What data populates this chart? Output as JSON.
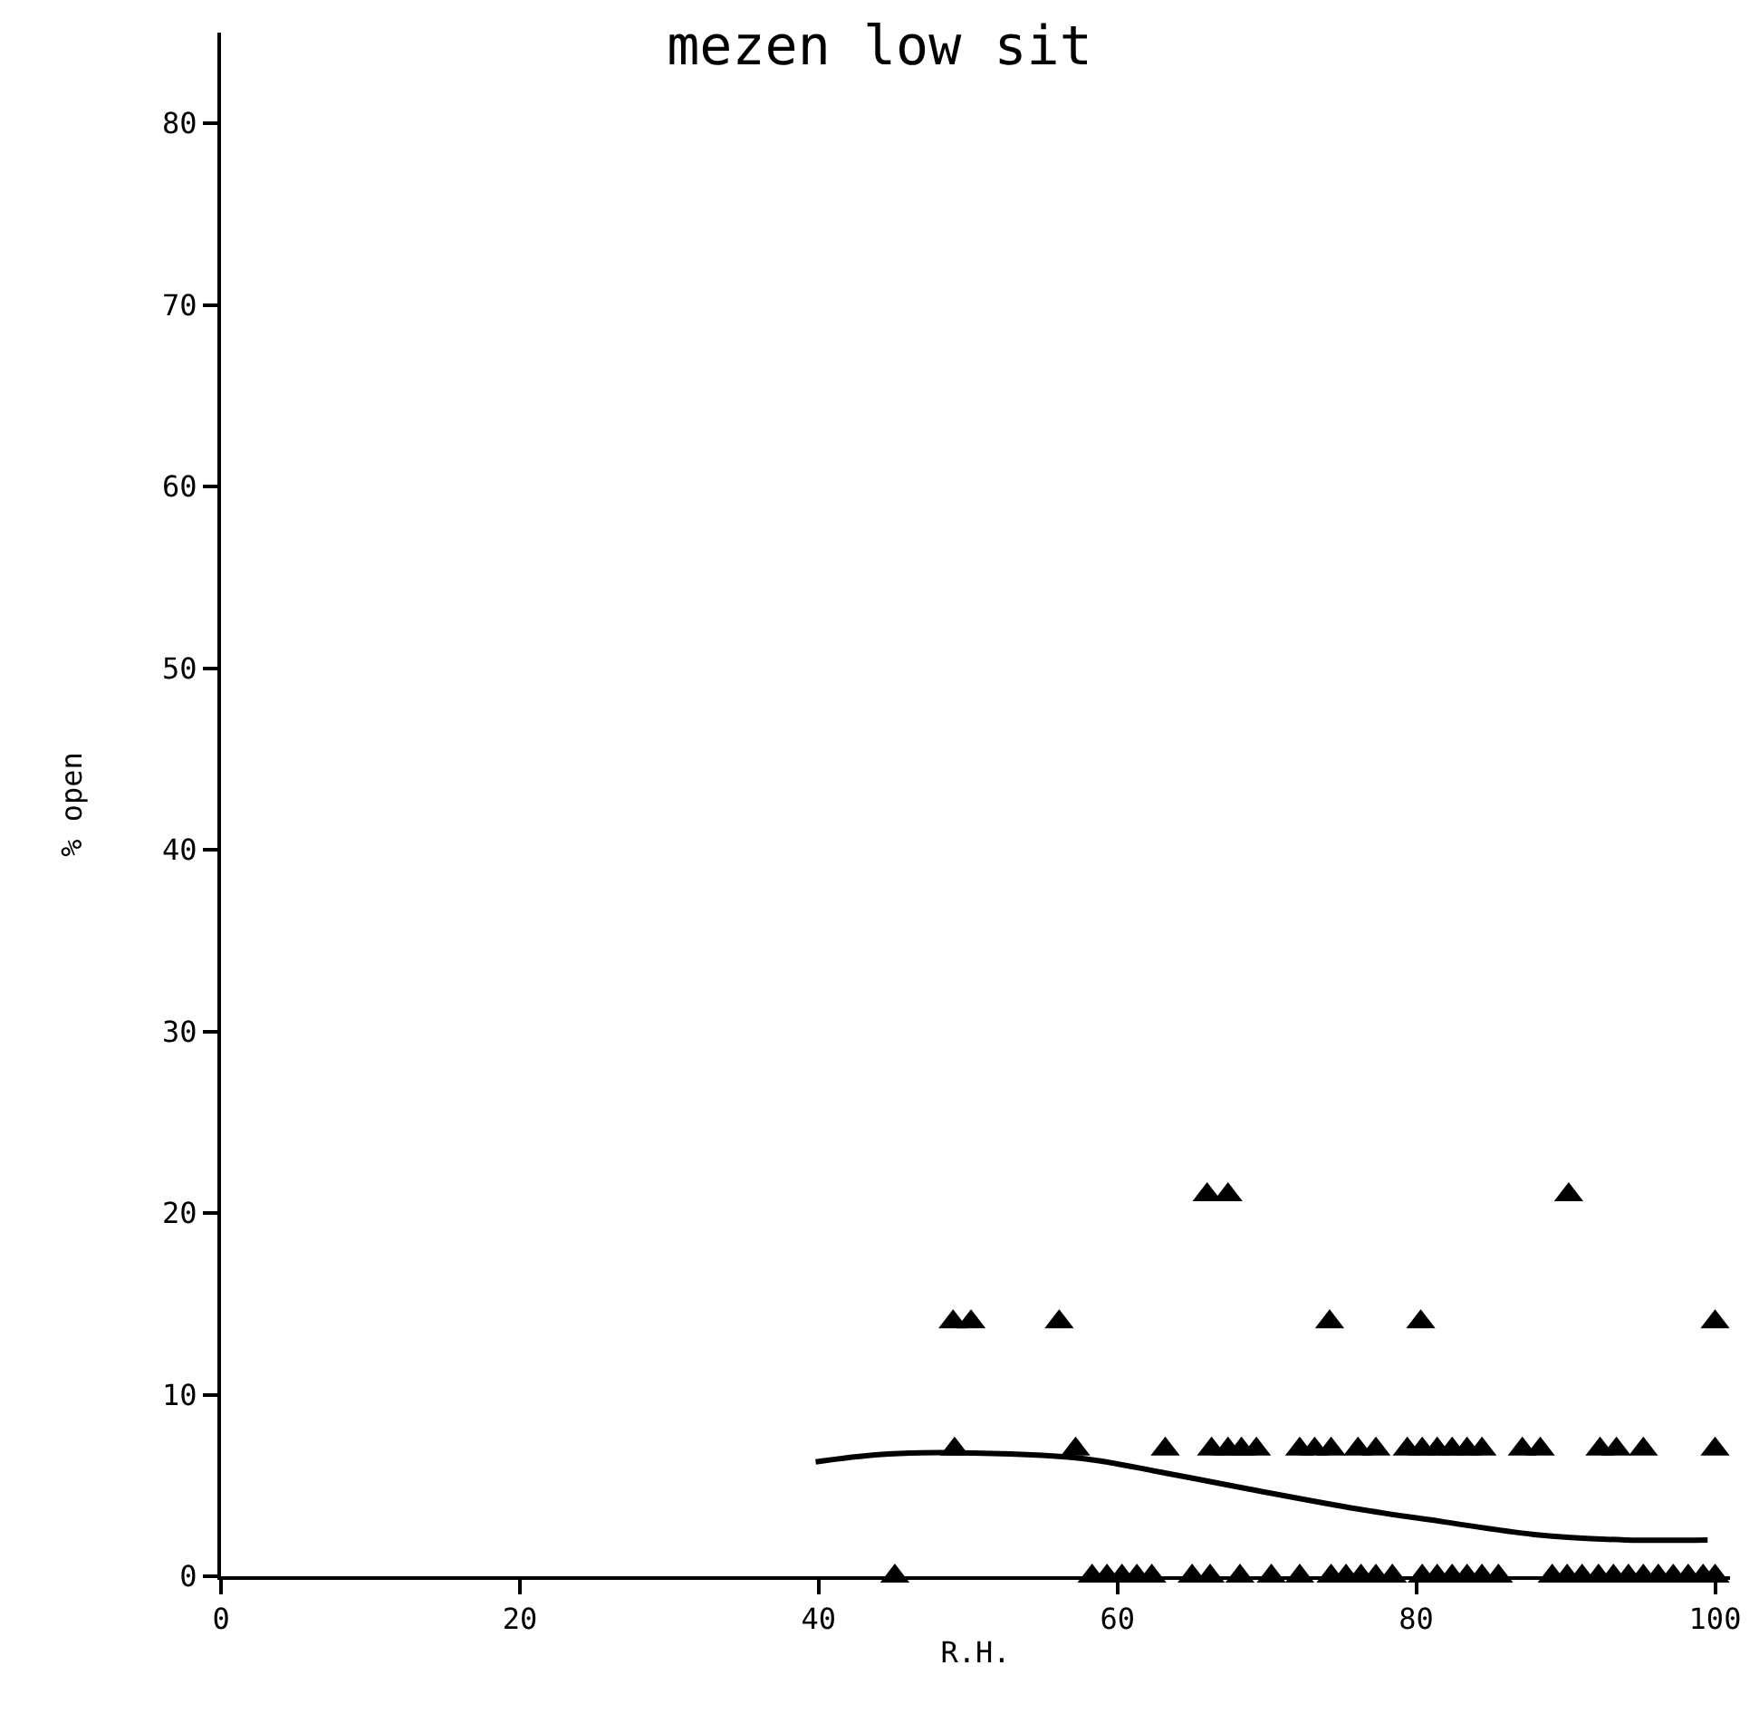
{
  "chart_data": {
    "type": "scatter",
    "title": "mezen low sit",
    "xlabel": "R.H.",
    "ylabel": "% open",
    "xlim": [
      0,
      101
    ],
    "xticks": [
      0,
      20,
      40,
      60,
      80,
      100
    ],
    "ylim": [
      0,
      85
    ],
    "yticks": [
      0,
      10,
      20,
      30,
      40,
      50,
      60,
      70,
      80
    ],
    "marker": "triangle",
    "series": [
      {
        "color": "#000000",
        "x": [
          66,
          67.4,
          90.2,
          49,
          50.2,
          56.1,
          74.2,
          80.3,
          100,
          49.1,
          57.2,
          63.2,
          66.3,
          67.4,
          68.3,
          69.3,
          72.2,
          73.2,
          74.3,
          76.1,
          77.3,
          79.4,
          80.4,
          81.4,
          82.4,
          83.4,
          84.4,
          87.1,
          88.3,
          92.3,
          93.4,
          95.2,
          100,
          45.1,
          58.3,
          59.3,
          60.3,
          61.3,
          62.3,
          65,
          66.2,
          68.2,
          70.3,
          72.2,
          74.3,
          75.3,
          76.3,
          77.3,
          78.4,
          80.4,
          81.4,
          82.4,
          83.4,
          84.4,
          85.5,
          89.1,
          90.1,
          91.1,
          92.2,
          93.2,
          94.2,
          95.2,
          96.2,
          97.2,
          98.2,
          99.2,
          100
        ],
        "values": [
          21,
          21,
          21,
          14,
          14,
          14,
          14,
          14,
          14,
          7,
          7,
          7,
          7,
          7,
          7,
          7,
          7,
          7,
          7,
          7,
          7,
          7,
          7,
          7,
          7,
          7,
          7,
          7,
          7,
          7,
          7,
          7,
          7,
          0,
          0,
          0,
          0,
          0,
          0,
          0,
          0,
          0,
          0,
          0,
          0,
          0,
          0,
          0,
          0,
          0,
          0,
          0,
          0,
          0,
          0,
          0,
          0,
          0,
          0,
          0,
          0,
          0,
          0,
          0,
          0,
          0,
          0
        ]
      },
      {
        "type": "line",
        "color": "#000000",
        "marker": "none",
        "x": [
          39.8,
          44,
          49,
          57.5,
          63.1,
          68.8,
          76.1,
          81.8,
          87.9,
          94,
          99.5
        ],
        "values": [
          6.3,
          6.7,
          6.8,
          6.5,
          5.7,
          4.8,
          3.7,
          3,
          2.3,
          2,
          2
        ]
      }
    ]
  }
}
